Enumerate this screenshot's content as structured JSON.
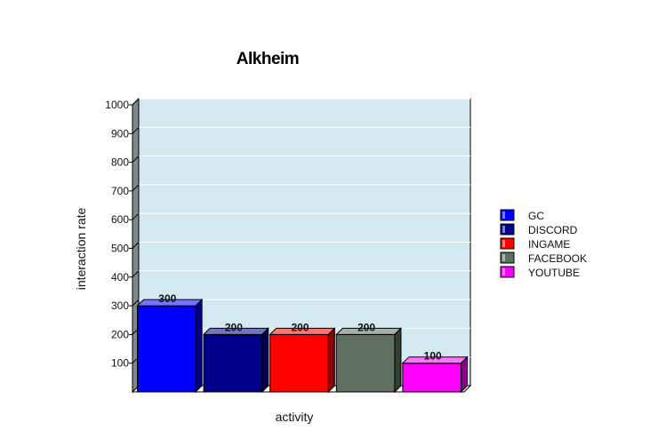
{
  "chart_data": {
    "type": "bar",
    "title": "Alkheim",
    "xlabel": "activity",
    "ylabel": "interaction rate",
    "ylim": [
      0,
      1000
    ],
    "yticks": [
      100,
      200,
      300,
      400,
      500,
      600,
      700,
      800,
      900,
      1000
    ],
    "grid": true,
    "legend_position": "right",
    "categories": [
      "GC",
      "DISCORD",
      "INGAME",
      "FACEBOOK",
      "YOUTUBE"
    ],
    "values": [
      300,
      200,
      200,
      200,
      100
    ],
    "data_labels": [
      "300",
      "200",
      "200",
      "200",
      "100"
    ],
    "colors": [
      "#0000ff",
      "#00008b",
      "#ff0000",
      "#5f7060",
      "#ff00ff"
    ],
    "plot_background": "#d3e9f0"
  }
}
